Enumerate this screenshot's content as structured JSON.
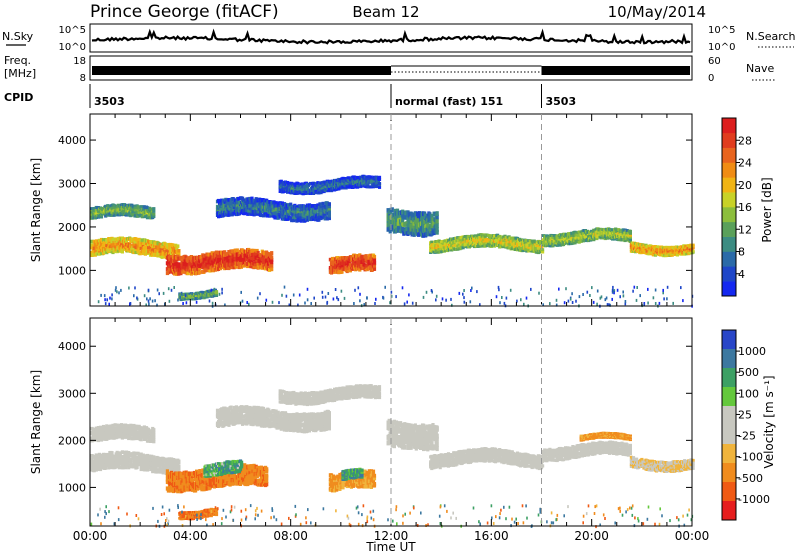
{
  "header": {
    "station": "Prince George (fitACF)",
    "beam": "Beam 12",
    "date": "10/May/2014"
  },
  "noise_panel": {
    "left_label": "N.Sky",
    "left_ticks": [
      "10^5",
      "10^0"
    ],
    "right_ticks": [
      "10^5",
      "10^0"
    ],
    "right_label": "N.Search"
  },
  "freq_panel": {
    "left_label_top": "Freq.",
    "left_label_bottom": "[MHz]",
    "left_ticks": [
      "18",
      "8"
    ],
    "right_ticks": [
      "60",
      "0"
    ],
    "right_label": "Nave"
  },
  "cpid_panel": {
    "label": "CPID",
    "segments": [
      {
        "start_hour": 0,
        "end_hour": 12,
        "text": "3503"
      },
      {
        "start_hour": 12,
        "end_hour": 18,
        "text": "normal (fast) 151"
      },
      {
        "start_hour": 18,
        "end_hour": 24,
        "text": "3503"
      }
    ]
  },
  "chart_data": [
    {
      "type": "heatmap",
      "parameter": "Power",
      "ylabel": "Slant Range [km]",
      "ylim": [
        180,
        4600
      ],
      "xlim": [
        0,
        24
      ],
      "yticks": [
        1000,
        2000,
        3000,
        4000
      ],
      "colorbar": {
        "label": "Power [dB]",
        "tick_labels": [
          "4",
          "8",
          "12",
          "16",
          "20",
          "24",
          "28"
        ],
        "colors": [
          "#1428f0",
          "#1e46c8",
          "#2a6aa8",
          "#3c8c82",
          "#5aa05a",
          "#8cbe3c",
          "#c8d228",
          "#f0b414",
          "#f08c14",
          "#e8641e",
          "#e03c1e",
          "#dc1e1e"
        ]
      },
      "echo_bands": [
        {
          "start_hour": 0.0,
          "end_hour": 2.5,
          "center_km": 2350,
          "width_km": 260,
          "power_db": 14
        },
        {
          "start_hour": 0.0,
          "end_hour": 3.5,
          "center_km": 1550,
          "width_km": 340,
          "power_db": 22
        },
        {
          "start_hour": 3.0,
          "end_hour": 7.2,
          "center_km": 1250,
          "width_km": 420,
          "power_db": 28
        },
        {
          "start_hour": 3.5,
          "end_hour": 5.0,
          "center_km": 500,
          "width_km": 160,
          "power_db": 14
        },
        {
          "start_hour": 5.0,
          "end_hour": 9.5,
          "center_km": 2450,
          "width_km": 380,
          "power_db": 9
        },
        {
          "start_hour": 7.5,
          "end_hour": 11.5,
          "center_km": 3000,
          "width_km": 260,
          "power_db": 8
        },
        {
          "start_hour": 9.5,
          "end_hour": 11.3,
          "center_km": 1150,
          "width_km": 360,
          "power_db": 28
        },
        {
          "start_hour": 11.8,
          "end_hour": 13.8,
          "center_km": 2200,
          "width_km": 520,
          "power_db": 12
        },
        {
          "start_hour": 13.5,
          "end_hour": 18.0,
          "center_km": 1650,
          "width_km": 280,
          "power_db": 18
        },
        {
          "start_hour": 18.0,
          "end_hour": 21.5,
          "center_km": 1800,
          "width_km": 260,
          "power_db": 16
        },
        {
          "start_hour": 21.5,
          "end_hour": 24.0,
          "center_km": 1550,
          "width_km": 220,
          "power_db": 22
        }
      ]
    },
    {
      "type": "heatmap",
      "parameter": "Velocity",
      "ylabel": "Slant Range [km]",
      "xlabel": "Time UT",
      "ylim": [
        180,
        4600
      ],
      "xlim": [
        0,
        24
      ],
      "yticks": [
        1000,
        2000,
        3000,
        4000
      ],
      "xtick_labels": [
        "00:00",
        "04:00",
        "08:00",
        "12:00",
        "16:00",
        "20:00",
        "00:00"
      ],
      "xticks": [
        0,
        4,
        8,
        12,
        16,
        20,
        24
      ],
      "colorbar": {
        "label": "Velocity [m s⁻¹]",
        "tick_labels": [
          "1000",
          "500",
          "100",
          "25",
          "-25",
          "-100",
          "-500",
          "-1000"
        ],
        "colors": [
          "#2846c8",
          "#3c78a0",
          "#3ca064",
          "#64c83c",
          "#c8c8c0",
          "#c8c8c0",
          "#f0b43c",
          "#f08c1e",
          "#f05a14",
          "#e61e1e"
        ]
      },
      "echo_bands": [
        {
          "start_hour": 0.0,
          "end_hour": 2.5,
          "center_km": 2150,
          "width_km": 300,
          "velocity": 0
        },
        {
          "start_hour": 0.0,
          "end_hour": 3.5,
          "center_km": 1550,
          "width_km": 340,
          "velocity": 0
        },
        {
          "start_hour": 3.0,
          "end_hour": 7.0,
          "center_km": 1250,
          "width_km": 420,
          "velocity": -300
        },
        {
          "start_hour": 4.5,
          "end_hour": 6.0,
          "center_km": 1400,
          "width_km": 260,
          "velocity": 150
        },
        {
          "start_hour": 3.5,
          "end_hour": 5.0,
          "center_km": 500,
          "width_km": 160,
          "velocity": -300
        },
        {
          "start_hour": 5.0,
          "end_hour": 9.5,
          "center_km": 2500,
          "width_km": 380,
          "velocity": 0
        },
        {
          "start_hour": 7.5,
          "end_hour": 11.5,
          "center_km": 3000,
          "width_km": 260,
          "velocity": 0
        },
        {
          "start_hour": 9.5,
          "end_hour": 11.3,
          "center_km": 1150,
          "width_km": 360,
          "velocity": -200
        },
        {
          "start_hour": 10.0,
          "end_hour": 10.8,
          "center_km": 1250,
          "width_km": 200,
          "velocity": 200
        },
        {
          "start_hour": 11.8,
          "end_hour": 13.8,
          "center_km": 2200,
          "width_km": 520,
          "velocity": 0
        },
        {
          "start_hour": 13.5,
          "end_hour": 18.0,
          "center_km": 1650,
          "width_km": 280,
          "velocity": 0
        },
        {
          "start_hour": 18.0,
          "end_hour": 21.5,
          "center_km": 1800,
          "width_km": 260,
          "velocity": 0
        },
        {
          "start_hour": 19.5,
          "end_hour": 21.5,
          "center_km": 2050,
          "width_km": 120,
          "velocity": -200
        },
        {
          "start_hour": 21.5,
          "end_hour": 24.0,
          "center_km": 1550,
          "width_km": 220,
          "velocity": -30
        }
      ]
    }
  ]
}
